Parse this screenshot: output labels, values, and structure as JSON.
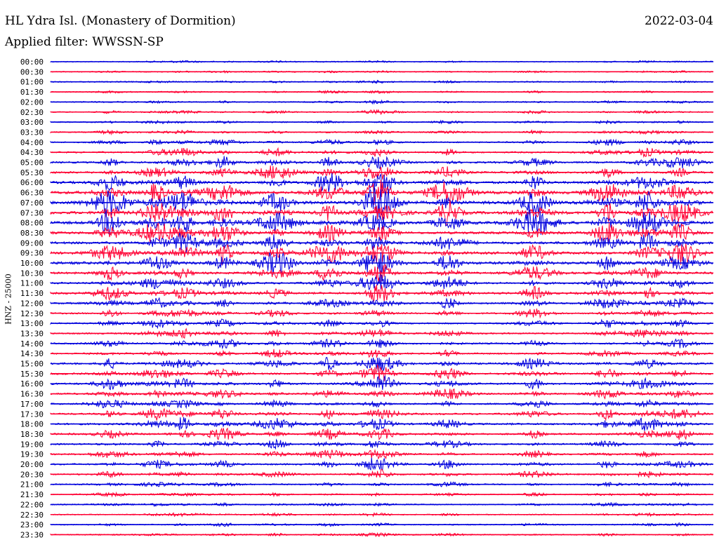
{
  "header": {
    "title": "HL Ydra Isl. (Monastery of Dormition)",
    "date": "2022-03-04",
    "filter": "Applied filter: WWSSN-SP"
  },
  "colors": {
    "odd_trace": "#0000dd",
    "even_trace": "#ff0033"
  },
  "chart_data": {
    "type": "line",
    "title": "HL Ydra Isl. (Monastery of Dormition)",
    "subtitle": "Applied filter: WWSSN-SP",
    "ylabel": "HNZ - 25000",
    "xlabel": "",
    "row_labels": [
      "00:00",
      "00:30",
      "01:00",
      "01:30",
      "02:00",
      "02:30",
      "03:00",
      "03:30",
      "04:00",
      "04:30",
      "05:00",
      "05:30",
      "06:00",
      "06:30",
      "07:00",
      "07:30",
      "08:00",
      "08:30",
      "09:00",
      "09:30",
      "10:00",
      "10:30",
      "11:00",
      "11:30",
      "12:00",
      "12:30",
      "13:00",
      "13:30",
      "14:00",
      "14:30",
      "15:00",
      "15:30",
      "16:00",
      "16:30",
      "17:00",
      "17:30",
      "18:00",
      "18:30",
      "19:00",
      "19:30",
      "20:00",
      "20:30",
      "21:00",
      "21:30",
      "22:00",
      "22:30",
      "23:00",
      "23:30"
    ],
    "row_colors": [
      "blue",
      "red"
    ],
    "activity_levels": [
      0.05,
      0.06,
      0.07,
      0.07,
      0.08,
      0.1,
      0.1,
      0.12,
      0.2,
      0.3,
      0.4,
      0.5,
      0.7,
      0.9,
      1.0,
      0.9,
      0.9,
      0.7,
      0.7,
      0.8,
      0.8,
      0.6,
      0.5,
      0.5,
      0.4,
      0.3,
      0.3,
      0.3,
      0.3,
      0.3,
      0.45,
      0.45,
      0.45,
      0.35,
      0.3,
      0.4,
      0.45,
      0.4,
      0.3,
      0.3,
      0.35,
      0.25,
      0.15,
      0.12,
      0.1,
      0.1,
      0.1,
      0.1
    ],
    "grid": false,
    "legend": "none"
  }
}
